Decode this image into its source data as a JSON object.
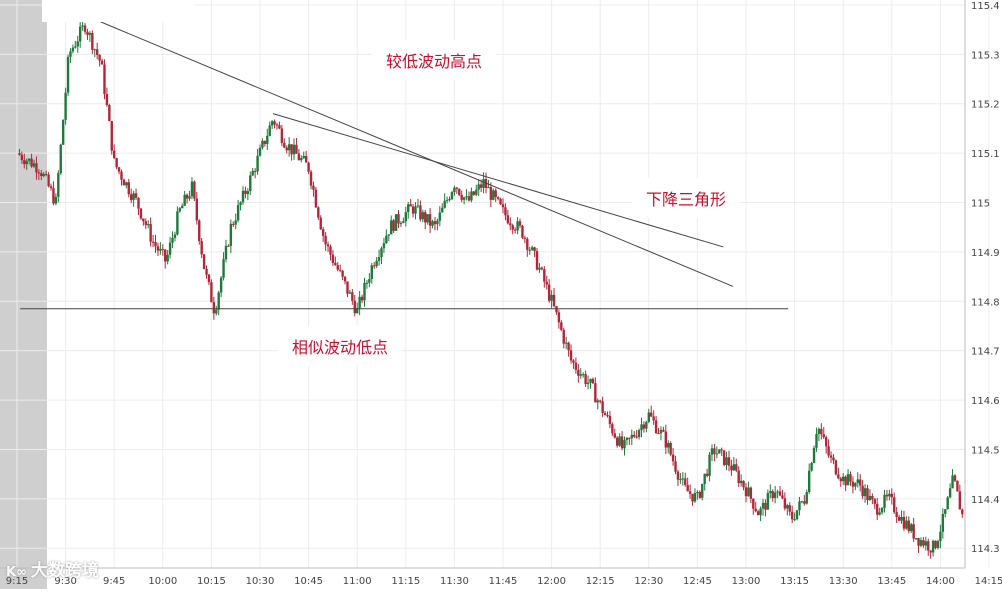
{
  "chart_data": {
    "type": "candlestick",
    "x_ticks": [
      "9:15",
      "9:30",
      "9:45",
      "10:00",
      "10:15",
      "10:30",
      "10:45",
      "11:00",
      "11:15",
      "11:30",
      "11:45",
      "12:00",
      "12:15",
      "12:30",
      "12:45",
      "13:00",
      "13:15",
      "13:30",
      "13:45",
      "14:00",
      "14:15"
    ],
    "y_ticks": [
      "115.4",
      "115.3",
      "115.2",
      "115.1",
      "115",
      "114.9",
      "114.8",
      "114.7",
      "114.6",
      "114.5",
      "114.4",
      "114.3"
    ],
    "ylim": [
      114.26,
      115.41
    ],
    "grid": true,
    "key_price_path": [
      [
        "9:15",
        115.1
      ],
      [
        "9:22",
        115.07
      ],
      [
        "9:27",
        115.0
      ],
      [
        "9:31",
        115.3
      ],
      [
        "9:36",
        115.36
      ],
      [
        "9:41",
        115.28
      ],
      [
        "9:45",
        115.08
      ],
      [
        "9:52",
        115.0
      ],
      [
        "9:57",
        114.92
      ],
      [
        "10:01",
        114.88
      ],
      [
        "10:05",
        114.98
      ],
      [
        "10:09",
        115.03
      ],
      [
        "10:13",
        114.86
      ],
      [
        "10:16",
        114.78
      ],
      [
        "10:21",
        114.95
      ],
      [
        "10:26",
        115.03
      ],
      [
        "10:30",
        115.1
      ],
      [
        "10:34",
        115.17
      ],
      [
        "10:38",
        115.12
      ],
      [
        "10:45",
        115.07
      ],
      [
        "10:50",
        114.92
      ],
      [
        "10:55",
        114.85
      ],
      [
        "11:00",
        114.78
      ],
      [
        "11:05",
        114.88
      ],
      [
        "11:10",
        114.95
      ],
      [
        "11:17",
        114.99
      ],
      [
        "11:24",
        114.95
      ],
      [
        "11:30",
        115.04
      ],
      [
        "11:34",
        115.0
      ],
      [
        "11:39",
        115.04
      ],
      [
        "11:45",
        114.98
      ],
      [
        "11:51",
        114.94
      ],
      [
        "11:56",
        114.87
      ],
      [
        "12:00",
        114.8
      ],
      [
        "12:03",
        114.74
      ],
      [
        "12:06",
        114.68
      ],
      [
        "12:12",
        114.63
      ],
      [
        "12:18",
        114.55
      ],
      [
        "12:22",
        114.5
      ],
      [
        "12:30",
        114.57
      ],
      [
        "12:35",
        114.52
      ],
      [
        "12:41",
        114.42
      ],
      [
        "12:45",
        114.4
      ],
      [
        "12:50",
        114.5
      ],
      [
        "12:55",
        114.47
      ],
      [
        "13:00",
        114.42
      ],
      [
        "13:04",
        114.37
      ],
      [
        "13:09",
        114.42
      ],
      [
        "13:14",
        114.36
      ],
      [
        "13:18",
        114.4
      ],
      [
        "13:22",
        114.55
      ],
      [
        "13:26",
        114.48
      ],
      [
        "13:30",
        114.44
      ],
      [
        "13:35",
        114.43
      ],
      [
        "13:40",
        114.38
      ],
      [
        "13:44",
        114.4
      ],
      [
        "13:48",
        114.36
      ],
      [
        "13:53",
        114.32
      ],
      [
        "13:58",
        114.3
      ],
      [
        "14:01",
        114.36
      ],
      [
        "14:04",
        114.44
      ],
      [
        "14:07",
        114.36
      ]
    ],
    "trendlines": [
      {
        "from": [
          "9:32",
          115.39
        ],
        "to": [
          "12:56",
          114.83
        ]
      },
      {
        "from": [
          "10:34",
          115.18
        ],
        "to": [
          "12:53",
          114.91
        ]
      },
      {
        "from": [
          "9:16",
          114.785
        ],
        "to": [
          "13:13",
          114.785
        ]
      }
    ],
    "annotations": [
      "较低波动高点",
      "下降三角形",
      "相似波动低点"
    ],
    "colors": {
      "up": "#1f7a3a",
      "down": "#b0273a",
      "line": "#444444",
      "text": "#c8102e",
      "grid": "#ececec",
      "axis_text": "#444444"
    }
  },
  "watermark": {
    "text": "大数跨境",
    "logo": "K∞"
  }
}
